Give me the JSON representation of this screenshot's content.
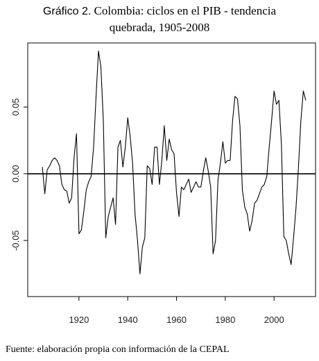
{
  "title": {
    "lead": "Gráfico 2.",
    "line1": "Colombia: ciclos en el PIB  - tendencia",
    "line2": "quebrada, 1905-2008"
  },
  "source": "Fuente: elaboración propia con información de la CEPAL",
  "chart_data": {
    "type": "line",
    "xlabel": "",
    "ylabel": "",
    "xlim": [
      1899,
      2017
    ],
    "ylim": [
      -0.092,
      0.098
    ],
    "xticks": [
      1920,
      1940,
      1960,
      1980,
      2000
    ],
    "yticks": [
      -0.05,
      0.0,
      0.05
    ],
    "ytick_labels": [
      "-0.05",
      "0.00",
      "0.05"
    ],
    "reference_line": 0.0,
    "grid": false,
    "line_color": "#000000",
    "series": [
      {
        "x": [
          1905,
          1906,
          1907,
          1908,
          1909,
          1910,
          1911,
          1912,
          1913,
          1914,
          1915,
          1916,
          1917,
          1918,
          1919,
          1920,
          1921,
          1922,
          1923,
          1924,
          1925,
          1926,
          1927,
          1928,
          1929,
          1930,
          1931,
          1932,
          1933,
          1934,
          1935,
          1936,
          1937,
          1938,
          1939,
          1940,
          1941,
          1942,
          1943,
          1944,
          1945,
          1946,
          1947,
          1948,
          1949,
          1950,
          1951,
          1952,
          1953,
          1954,
          1955,
          1956,
          1957,
          1958,
          1959,
          1960,
          1961,
          1962,
          1963,
          1964,
          1965,
          1966,
          1967,
          1968,
          1969,
          1970,
          1971,
          1972,
          1973,
          1974,
          1975,
          1976,
          1977,
          1978,
          1979,
          1980,
          1981,
          1982,
          1983,
          1984,
          1985,
          1986,
          1987,
          1988,
          1989,
          1990,
          1991,
          1992,
          1993,
          1994,
          1995,
          1996,
          1997,
          1998,
          1999,
          2000,
          2001,
          2002,
          2003,
          2004,
          2005,
          2006,
          2007,
          2008,
          2009,
          2010,
          2011,
          2012,
          2013
        ],
        "values": [
          0.005,
          -0.015,
          0.003,
          0.006,
          0.01,
          0.012,
          0.01,
          0.006,
          -0.008,
          -0.012,
          -0.013,
          -0.022,
          -0.018,
          0.012,
          0.03,
          -0.045,
          -0.042,
          -0.028,
          -0.012,
          -0.006,
          -0.002,
          0.02,
          0.058,
          0.092,
          0.08,
          0.04,
          -0.048,
          -0.032,
          -0.025,
          -0.018,
          -0.038,
          0.02,
          0.025,
          0.005,
          0.02,
          0.042,
          0.028,
          0.008,
          -0.03,
          -0.05,
          -0.075,
          -0.055,
          -0.048,
          0.006,
          0.004,
          -0.008,
          0.02,
          0.02,
          -0.008,
          0.01,
          0.036,
          0.01,
          0.026,
          0.018,
          0.015,
          -0.014,
          -0.032,
          -0.01,
          -0.012,
          -0.008,
          -0.004,
          -0.014,
          -0.01,
          -0.006,
          -0.01,
          -0.01,
          0.002,
          0.012,
          0.002,
          -0.01,
          -0.06,
          -0.05,
          -0.005,
          0.008,
          0.024,
          0.008,
          0.01,
          0.01,
          0.04,
          0.058,
          0.056,
          0.036,
          -0.012,
          -0.025,
          -0.03,
          -0.043,
          -0.035,
          -0.022,
          -0.02,
          -0.015,
          -0.01,
          -0.008,
          -0.002,
          0.02,
          0.04,
          0.062,
          0.052,
          0.055,
          0.022,
          -0.047,
          -0.05,
          -0.06,
          -0.068,
          -0.048,
          -0.025,
          0.005,
          0.04,
          0.062,
          0.055
        ]
      }
    ]
  }
}
